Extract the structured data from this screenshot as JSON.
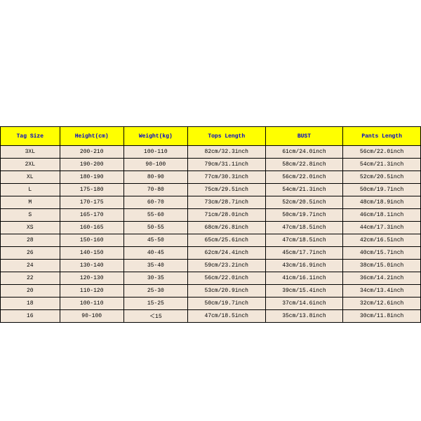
{
  "table": {
    "type": "table",
    "header_bg": "#ffff00",
    "header_fg": "#0000cc",
    "row_bg": "#f2e6d9",
    "border_color": "#000000",
    "columns": [
      "Tag Size",
      "Height(cm)",
      "Weight(kg)",
      "Tops Length",
      "BUST",
      "Pants Length"
    ],
    "rows": [
      [
        "3XL",
        "200-210",
        "100-110",
        "82cm/32.3inch",
        "61cm/24.0inch",
        "56cm/22.0inch"
      ],
      [
        "2XL",
        "190-200",
        "90-100",
        "79cm/31.1inch",
        "58cm/22.8inch",
        "54cm/21.3inch"
      ],
      [
        "XL",
        "180-190",
        "80-90",
        "77cm/30.3inch",
        "56cm/22.0inch",
        "52cm/20.5inch"
      ],
      [
        "L",
        "175-180",
        "70-80",
        "75cm/29.5inch",
        "54cm/21.3inch",
        "50cm/19.7inch"
      ],
      [
        "M",
        "170-175",
        "60-70",
        "73cm/28.7inch",
        "52cm/20.5inch",
        "48cm/18.9inch"
      ],
      [
        "S",
        "165-170",
        "55-60",
        "71cm/28.0inch",
        "50cm/19.7inch",
        "46cm/18.1inch"
      ],
      [
        "XS",
        "160-165",
        "50-55",
        "68cm/26.8inch",
        "47cm/18.5inch",
        "44cm/17.3inch"
      ],
      [
        "28",
        "150-160",
        "45-50",
        "65cm/25.6inch",
        "47cm/18.5inch",
        "42cm/16.5inch"
      ],
      [
        "26",
        "140-150",
        "40-45",
        "62cm/24.4inch",
        "45cm/17.7inch",
        "40cm/15.7inch"
      ],
      [
        "24",
        "130-140",
        "35-40",
        "59cm/23.2inch",
        "43cm/16.9inch",
        "38cm/15.0inch"
      ],
      [
        "22",
        "120-130",
        "30-35",
        "56cm/22.0inch",
        "41cm/16.1inch",
        "36cm/14.2inch"
      ],
      [
        "20",
        "110-120",
        "25-30",
        "53cm/20.9inch",
        "39cm/15.4inch",
        "34cm/13.4inch"
      ],
      [
        "18",
        "100-110",
        "15-25",
        "50cm/19.7inch",
        "37cm/14.6inch",
        "32cm/12.6inch"
      ],
      [
        "16",
        "90-100",
        "＜15",
        "47cm/18.5inch",
        "35cm/13.8inch",
        "30cm/11.8inch"
      ]
    ]
  }
}
